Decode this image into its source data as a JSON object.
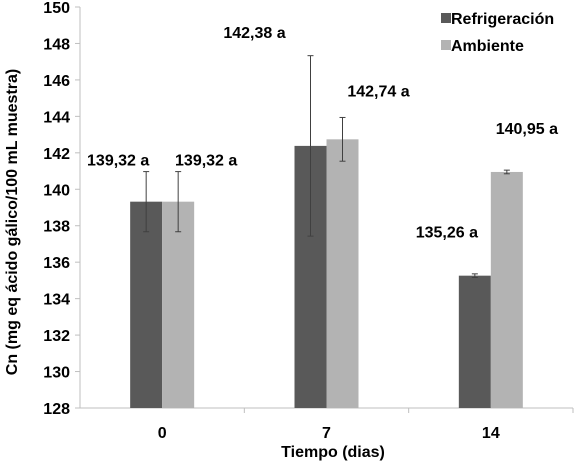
{
  "chart_data": {
    "type": "bar",
    "title": "",
    "xlabel": "Tiempo (dias)",
    "ylabel": "Cn (mg eq ácido gálico/100 mL muestra)",
    "ylim": [
      128,
      150
    ],
    "ytick_step": 2,
    "categories": [
      "0",
      "7",
      "14"
    ],
    "series": [
      {
        "name": "Refrigeración",
        "color": "#595959",
        "values": [
          139.32,
          142.38,
          135.26
        ],
        "error": [
          1.65,
          4.95,
          0.1
        ],
        "labels": [
          "139,32 a",
          "142,38 a",
          "135,26 a"
        ]
      },
      {
        "name": "Ambiente",
        "color": "#b3b3b3",
        "values": [
          139.32,
          142.74,
          140.95
        ],
        "error": [
          1.65,
          1.2,
          0.1
        ],
        "labels": [
          "139,32 a",
          "142,74 a",
          "140,95 a"
        ]
      }
    ],
    "legend": "top-right",
    "grid": false
  }
}
